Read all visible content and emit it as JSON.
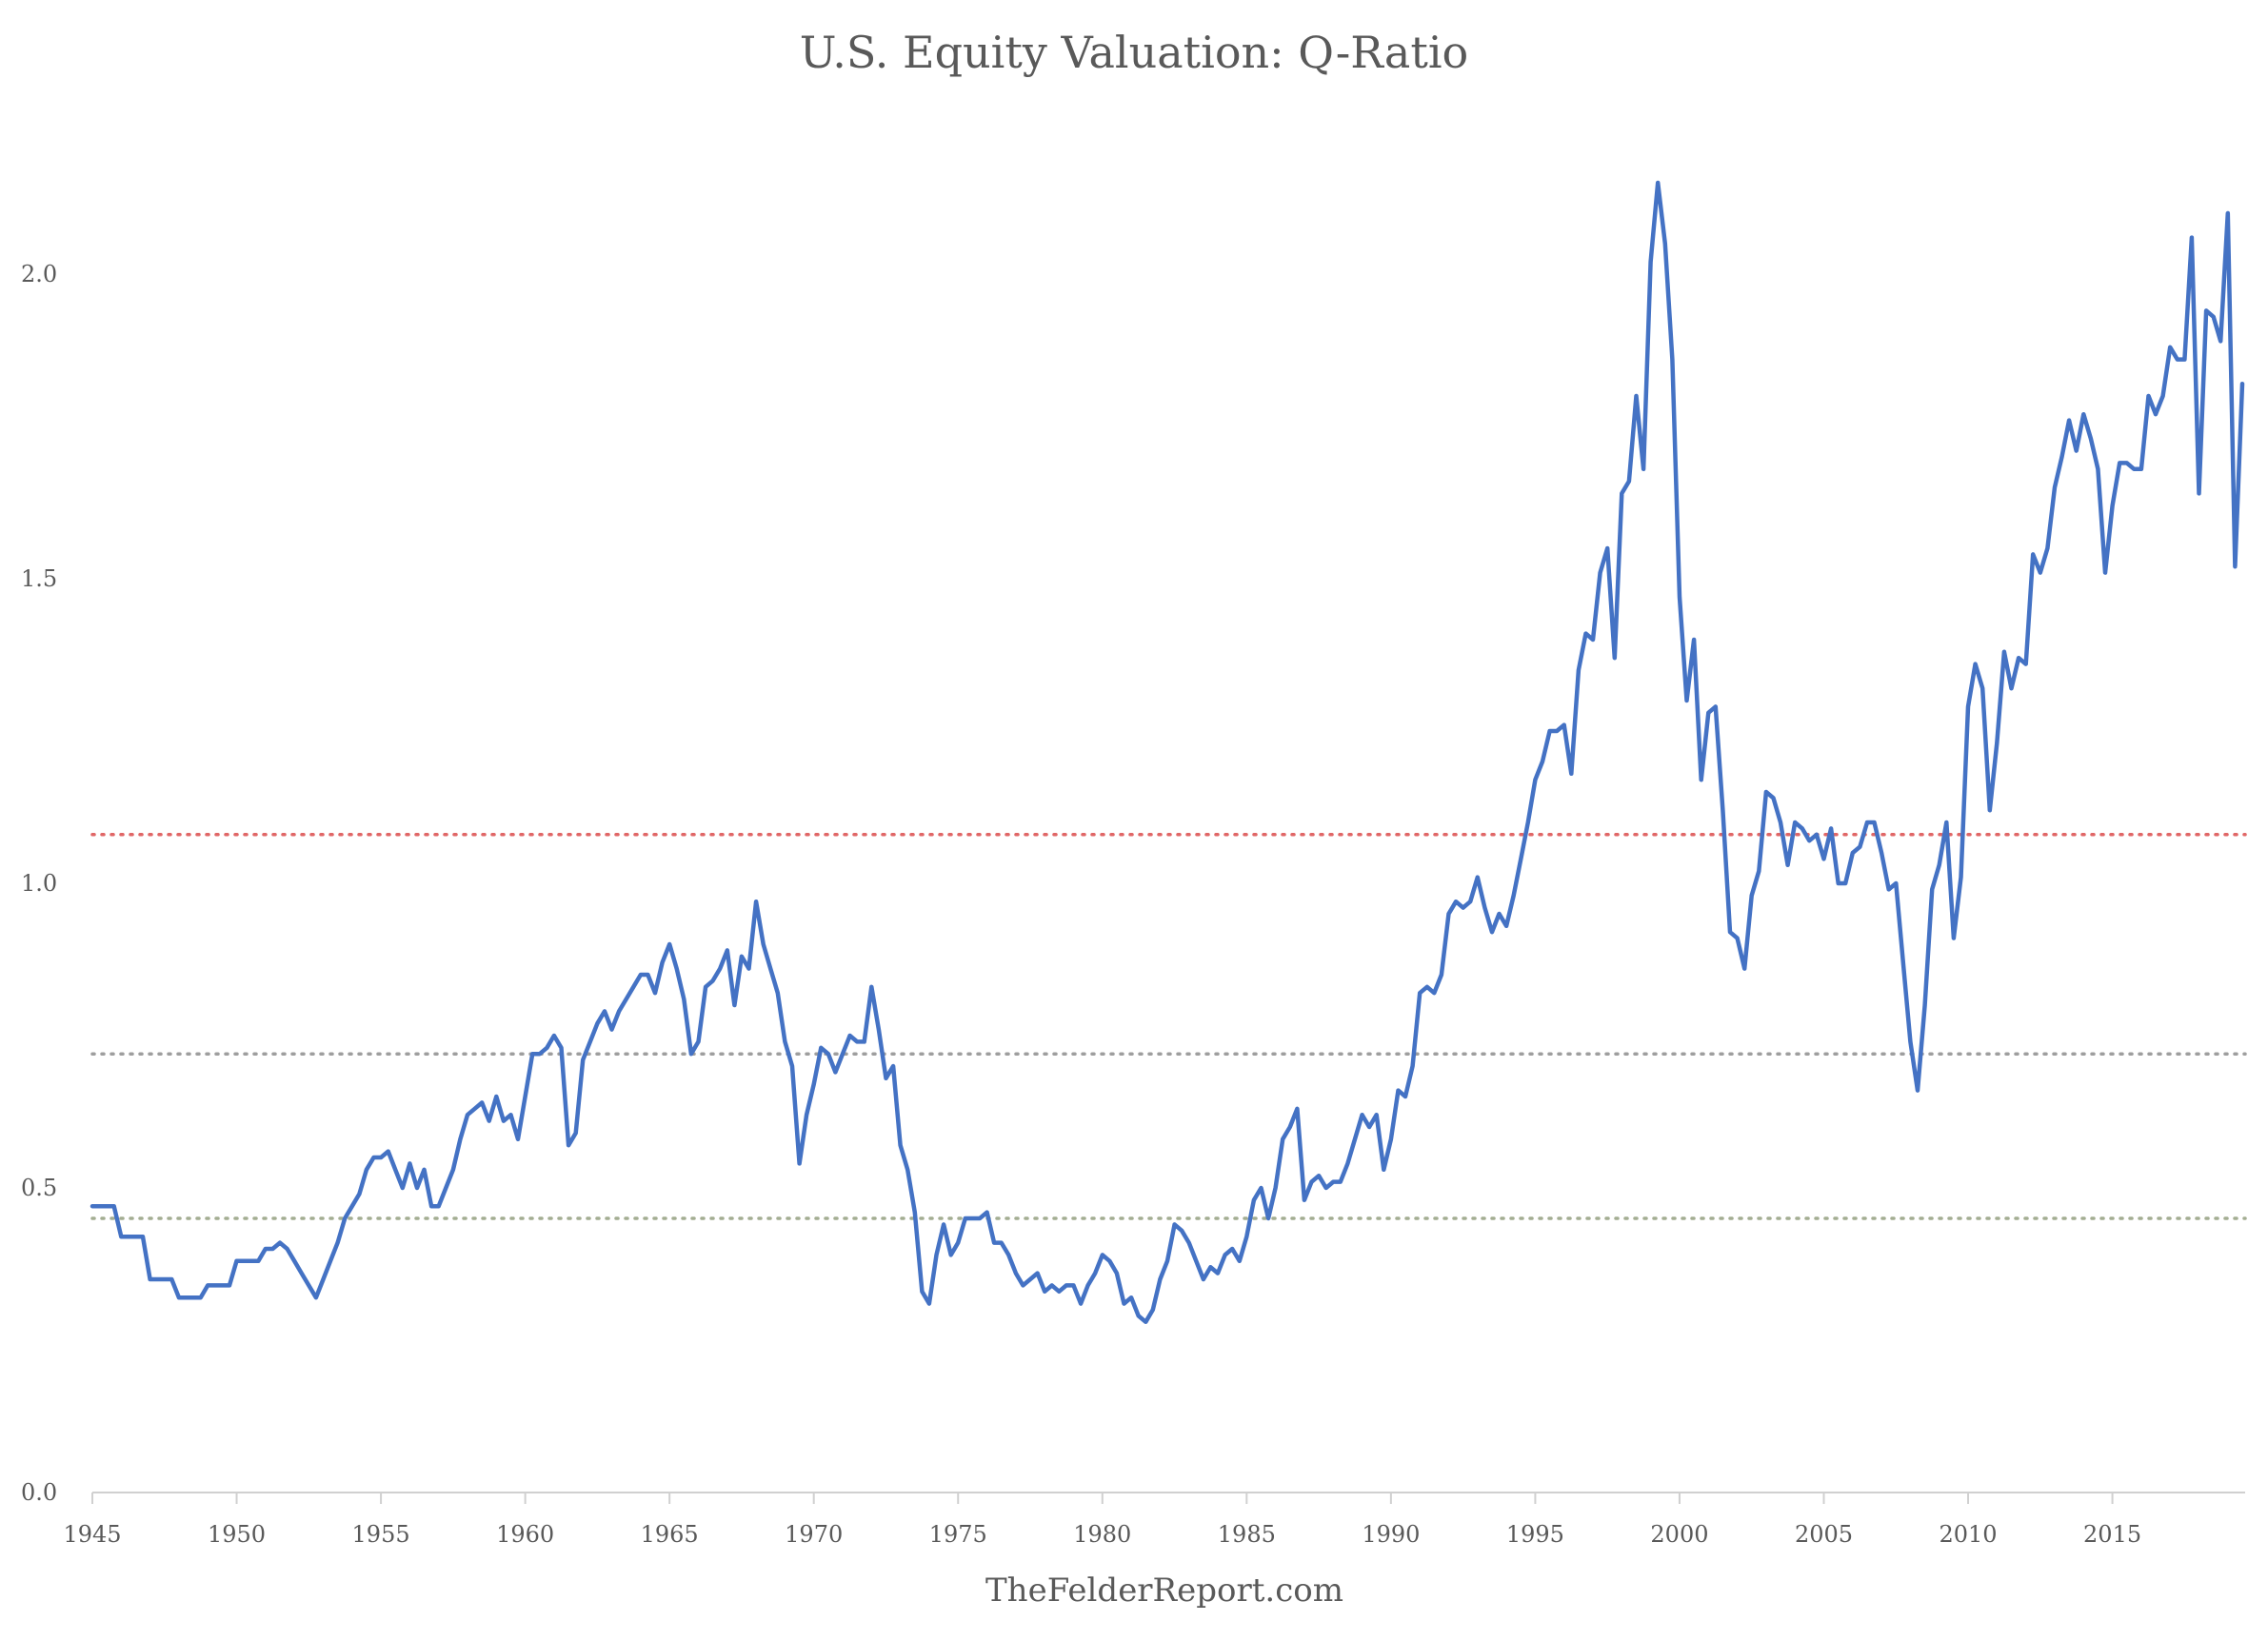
{
  "chart_data": {
    "type": "line",
    "title": "U.S. Equity Valuation: Q-Ratio",
    "xlabel": "TheFelderReport.com",
    "ylabel": "",
    "xlim": [
      1945,
      2019.6
    ],
    "ylim": [
      0,
      2.25
    ],
    "y_ticks": [
      "0.0",
      "0.5",
      "1.0",
      "1.5",
      "2.0"
    ],
    "y_tick_values": [
      0,
      0.5,
      1.0,
      1.5,
      2.0
    ],
    "x_ticks": [
      "1945",
      "1950",
      "1955",
      "1960",
      "1965",
      "1970",
      "1975",
      "1980",
      "1985",
      "1990",
      "1995",
      "2000",
      "2005",
      "2010",
      "2015"
    ],
    "x_tick_values": [
      1945,
      1950,
      1955,
      1960,
      1965,
      1970,
      1975,
      1980,
      1985,
      1990,
      1995,
      2000,
      2005,
      2010,
      2015
    ],
    "grid": false,
    "reference_lines": [
      {
        "value": 1.08,
        "color": "#e06666",
        "style": "dotted"
      },
      {
        "value": 0.72,
        "color": "#9e9e9e",
        "style": "dotted"
      },
      {
        "value": 0.45,
        "color": "#a3ad92",
        "style": "dotted"
      }
    ],
    "series": [
      {
        "color": "#4472c4",
        "x": [
          1945,
          1945.75,
          1946,
          1946.75,
          1947,
          1947.75,
          1948,
          1948.75,
          1949,
          1949.75,
          1950,
          1950.75,
          1951,
          1951.25,
          1951.5,
          1951.75,
          1952,
          1952.25,
          1952.5,
          1952.75,
          1953,
          1953.25,
          1953.5,
          1953.75,
          1954,
          1954.25,
          1954.5,
          1954.75,
          1955,
          1955.25,
          1955.5,
          1955.75,
          1956,
          1956.25,
          1956.5,
          1956.75,
          1957,
          1957.25,
          1957.5,
          1957.75,
          1958,
          1958.25,
          1958.5,
          1958.75,
          1959,
          1959.25,
          1959.5,
          1959.75,
          1960,
          1960.25,
          1960.5,
          1960.75,
          1961,
          1961.25,
          1961.5,
          1961.75,
          1962,
          1962.25,
          1962.5,
          1962.75,
          1963,
          1963.25,
          1963.5,
          1963.75,
          1964,
          1964.25,
          1964.5,
          1964.75,
          1965,
          1965.25,
          1965.5,
          1965.75,
          1966,
          1966.25,
          1966.5,
          1966.75,
          1967,
          1967.25,
          1967.5,
          1967.75,
          1968,
          1968.25,
          1968.5,
          1968.75,
          1969,
          1969.25,
          1969.5,
          1969.75,
          1970,
          1970.25,
          1970.5,
          1970.75,
          1971,
          1971.25,
          1971.5,
          1971.75,
          1972,
          1972.25,
          1972.5,
          1972.75,
          1973,
          1973.25,
          1973.5,
          1973.75,
          1974,
          1974.25,
          1974.5,
          1974.75,
          1975,
          1975.25,
          1975.5,
          1975.75,
          1976,
          1976.25,
          1976.5,
          1976.75,
          1977,
          1977.25,
          1977.5,
          1977.75,
          1978,
          1978.25,
          1978.5,
          1978.75,
          1979,
          1979.25,
          1979.5,
          1979.75,
          1980,
          1980.25,
          1980.5,
          1980.75,
          1981,
          1981.25,
          1981.5,
          1981.75,
          1982,
          1982.25,
          1982.5,
          1982.75,
          1983,
          1983.25,
          1983.5,
          1983.75,
          1984,
          1984.25,
          1984.5,
          1984.75,
          1985,
          1985.25,
          1985.5,
          1985.75,
          1986,
          1986.25,
          1986.5,
          1986.75,
          1987,
          1987.25,
          1987.5,
          1987.75,
          1988,
          1988.25,
          1988.5,
          1988.75,
          1989,
          1989.25,
          1989.5,
          1989.75,
          1990,
          1990.25,
          1990.5,
          1990.75,
          1991,
          1991.25,
          1991.5,
          1991.75,
          1992,
          1992.25,
          1992.5,
          1992.75,
          1993,
          1993.25,
          1993.5,
          1993.75,
          1994,
          1994.25,
          1994.5,
          1994.75,
          1995,
          1995.25,
          1995.5,
          1995.75,
          1996,
          1996.25,
          1996.5,
          1996.75,
          1997,
          1997.25,
          1997.5,
          1997.75,
          1998,
          1998.25,
          1998.5,
          1998.75,
          1999,
          1999.25,
          1999.5,
          1999.75,
          2000,
          2000.25,
          2000.5,
          2000.75,
          2001,
          2001.25,
          2001.5,
          2001.75,
          2002,
          2002.25,
          2002.5,
          2002.75,
          2003,
          2003.25,
          2003.5,
          2003.75,
          2004,
          2004.25,
          2004.5,
          2004.75,
          2005,
          2005.25,
          2005.5,
          2005.75,
          2006,
          2006.25,
          2006.5,
          2006.75,
          2007,
          2007.25,
          2007.5,
          2007.75,
          2008,
          2008.25,
          2008.5,
          2008.75,
          2009,
          2009.25,
          2009.5,
          2009.75,
          2010,
          2010.25,
          2010.5,
          2010.75,
          2011,
          2011.25,
          2011.5,
          2011.75,
          2012,
          2012.25,
          2012.5,
          2012.75,
          2013,
          2013.25,
          2013.5,
          2013.75,
          2014,
          2014.25,
          2014.5,
          2014.75,
          2015,
          2015.25,
          2015.5,
          2015.75,
          2016,
          2016.25,
          2016.5,
          2016.75,
          2017,
          2017.25,
          2017.5,
          2017.75,
          2018,
          2018.25,
          2018.5,
          2018.75,
          2019,
          2019.25,
          2019.5
        ],
        "values": [
          0.47,
          0.47,
          0.42,
          0.42,
          0.35,
          0.35,
          0.32,
          0.32,
          0.34,
          0.34,
          0.38,
          0.38,
          0.4,
          0.4,
          0.41,
          0.4,
          0.38,
          0.36,
          0.34,
          0.32,
          0.35,
          0.38,
          0.41,
          0.45,
          0.47,
          0.49,
          0.53,
          0.55,
          0.55,
          0.56,
          0.53,
          0.5,
          0.54,
          0.5,
          0.53,
          0.47,
          0.47,
          0.5,
          0.53,
          0.58,
          0.62,
          0.63,
          0.64,
          0.61,
          0.65,
          0.61,
          0.62,
          0.58,
          0.65,
          0.72,
          0.72,
          0.73,
          0.75,
          0.73,
          0.57,
          0.59,
          0.71,
          0.74,
          0.77,
          0.79,
          0.76,
          0.79,
          0.81,
          0.83,
          0.85,
          0.85,
          0.82,
          0.87,
          0.9,
          0.86,
          0.81,
          0.72,
          0.74,
          0.83,
          0.84,
          0.86,
          0.89,
          0.8,
          0.88,
          0.86,
          0.97,
          0.9,
          0.86,
          0.82,
          0.74,
          0.7,
          0.54,
          0.62,
          0.67,
          0.73,
          0.72,
          0.69,
          0.72,
          0.75,
          0.74,
          0.74,
          0.83,
          0.76,
          0.68,
          0.7,
          0.57,
          0.53,
          0.46,
          0.33,
          0.31,
          0.39,
          0.44,
          0.39,
          0.41,
          0.45,
          0.45,
          0.45,
          0.46,
          0.41,
          0.41,
          0.39,
          0.36,
          0.34,
          0.35,
          0.36,
          0.33,
          0.34,
          0.33,
          0.34,
          0.34,
          0.31,
          0.34,
          0.36,
          0.39,
          0.38,
          0.36,
          0.31,
          0.32,
          0.29,
          0.28,
          0.3,
          0.35,
          0.38,
          0.44,
          0.43,
          0.41,
          0.38,
          0.35,
          0.37,
          0.36,
          0.39,
          0.4,
          0.38,
          0.42,
          0.48,
          0.5,
          0.45,
          0.5,
          0.58,
          0.6,
          0.63,
          0.48,
          0.51,
          0.52,
          0.5,
          0.51,
          0.51,
          0.54,
          0.58,
          0.62,
          0.6,
          0.62,
          0.53,
          0.58,
          0.66,
          0.65,
          0.7,
          0.82,
          0.83,
          0.82,
          0.85,
          0.95,
          0.97,
          0.96,
          0.97,
          1.01,
          0.96,
          0.92,
          0.95,
          0.93,
          0.98,
          1.04,
          1.1,
          1.17,
          1.2,
          1.25,
          1.25,
          1.26,
          1.18,
          1.35,
          1.41,
          1.4,
          1.51,
          1.55,
          1.37,
          1.64,
          1.66,
          1.8,
          1.68,
          2.02,
          2.15,
          2.05,
          1.86,
          1.47,
          1.3,
          1.4,
          1.17,
          1.28,
          1.29,
          1.12,
          0.92,
          0.91,
          0.86,
          0.98,
          1.02,
          1.15,
          1.14,
          1.1,
          1.03,
          1.1,
          1.09,
          1.07,
          1.08,
          1.04,
          1.09,
          1.0,
          1.0,
          1.05,
          1.06,
          1.1,
          1.1,
          1.05,
          0.99,
          1.0,
          0.87,
          0.74,
          0.66,
          0.8,
          0.99,
          1.03,
          1.1,
          0.91,
          1.01,
          1.29,
          1.36,
          1.32,
          1.12,
          1.23,
          1.38,
          1.32,
          1.37,
          1.36,
          1.54,
          1.51,
          1.55,
          1.65,
          1.7,
          1.76,
          1.71,
          1.77,
          1.73,
          1.68,
          1.51,
          1.62,
          1.69,
          1.69,
          1.68,
          1.68,
          1.8,
          1.77,
          1.8,
          1.88,
          1.86,
          1.86,
          2.06,
          1.64,
          1.94,
          1.93,
          1.89,
          2.1,
          1.52,
          1.82
        ]
      }
    ]
  }
}
